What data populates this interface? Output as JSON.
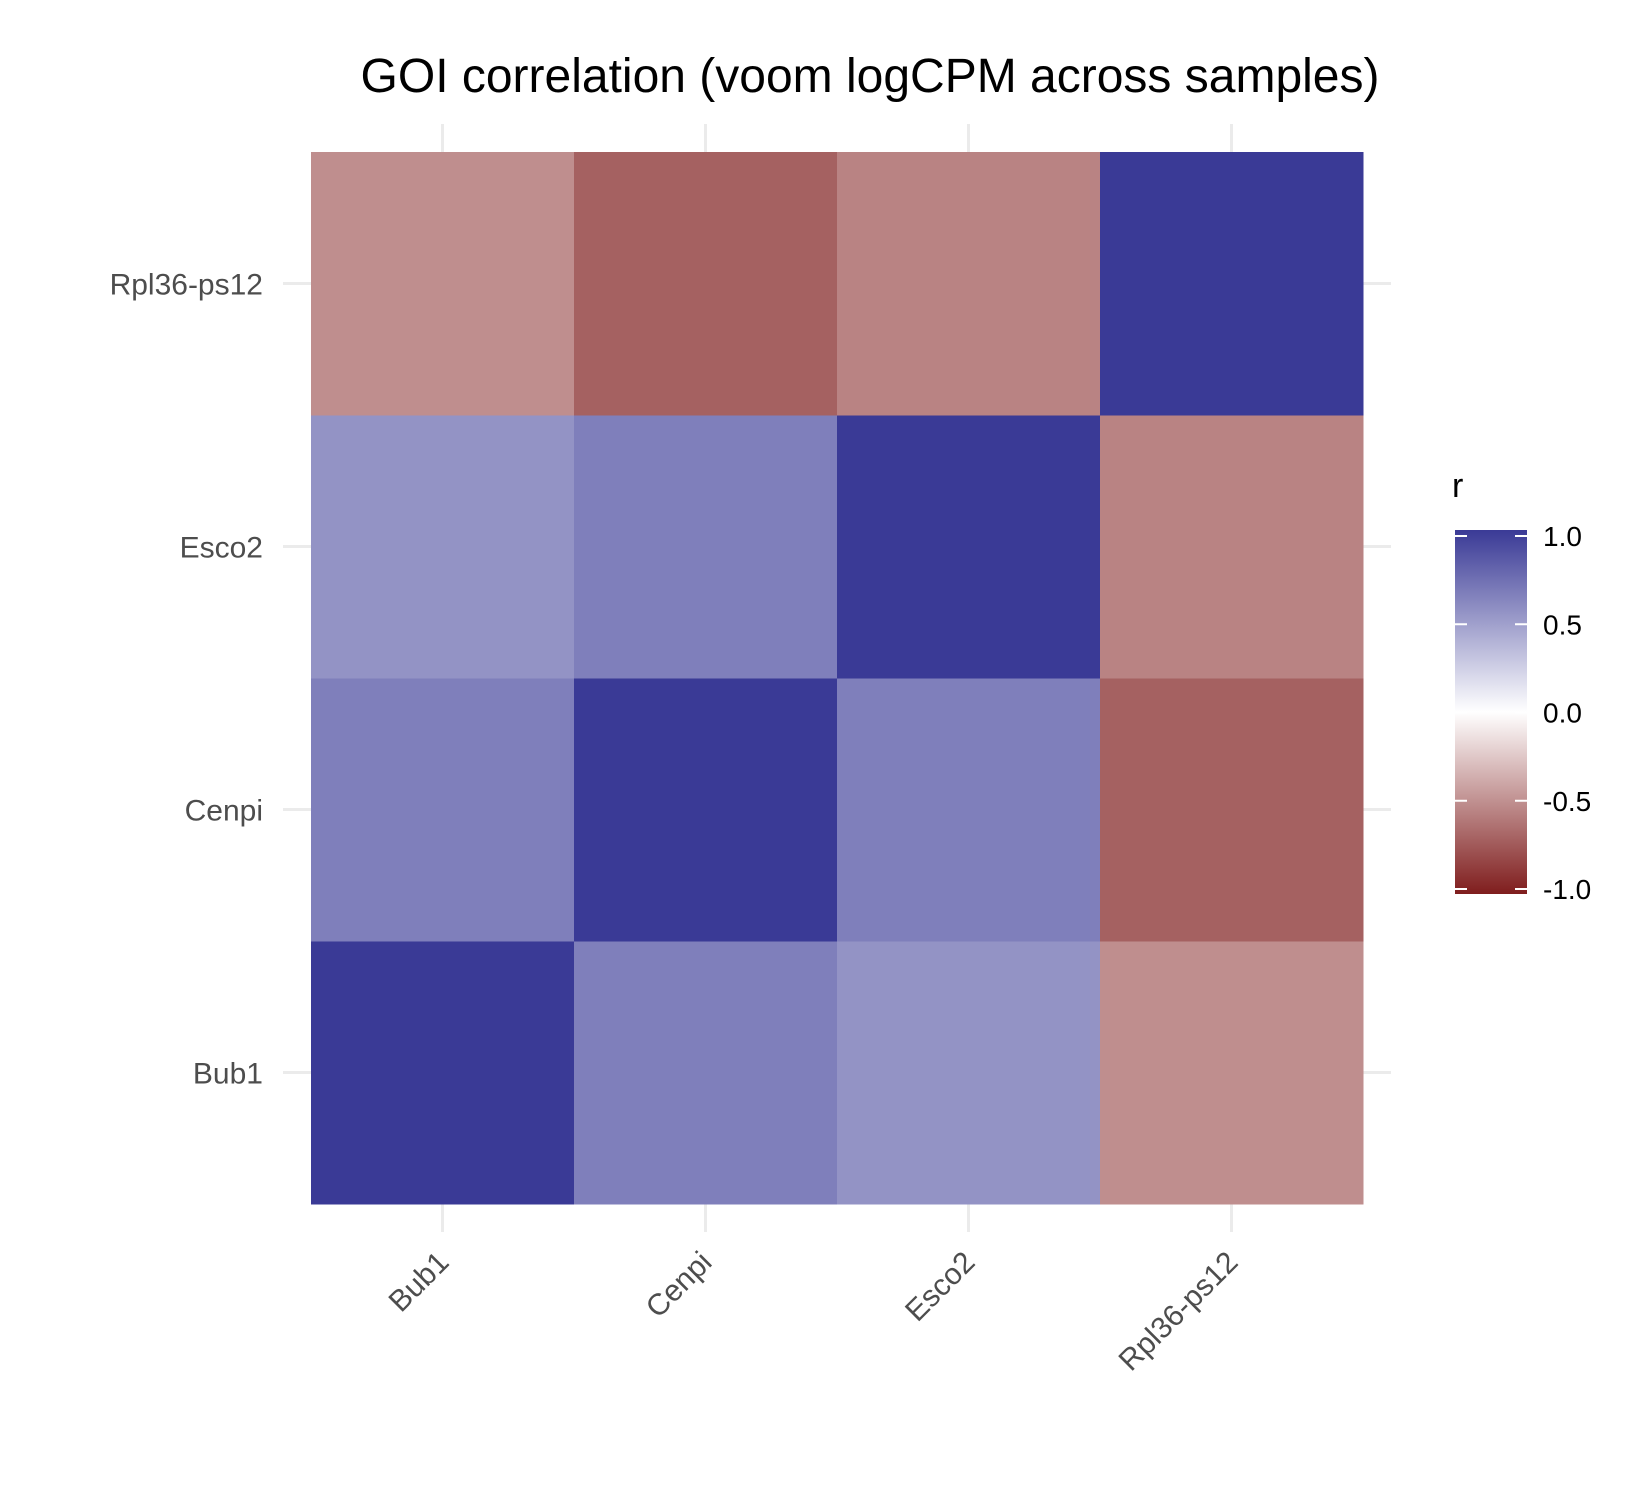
{
  "chart_data": {
    "type": "heatmap",
    "title": "GOI correlation (voom logCPM across samples)",
    "x_categories": [
      "Bub1",
      "Cenpi",
      "Esco2",
      "Rpl36-ps12"
    ],
    "y_categories": [
      "Bub1",
      "Cenpi",
      "Esco2",
      "Rpl36-ps12"
    ],
    "values": [
      [
        1.0,
        0.65,
        0.55,
        -0.5
      ],
      [
        0.65,
        1.0,
        0.65,
        -0.7
      ],
      [
        0.55,
        0.65,
        1.0,
        -0.55
      ],
      [
        -0.5,
        -0.7,
        -0.55,
        1.0
      ]
    ],
    "legend": {
      "title": "r",
      "ticks": [
        "1.0",
        "0.5",
        "0.0",
        "-0.5",
        "-1.0"
      ],
      "range": [
        -1,
        1
      ],
      "position": "right"
    },
    "colors": {
      "high": "#3a3a96",
      "mid": "#ffffff",
      "low": "#7f1d1d"
    },
    "grid": true
  }
}
